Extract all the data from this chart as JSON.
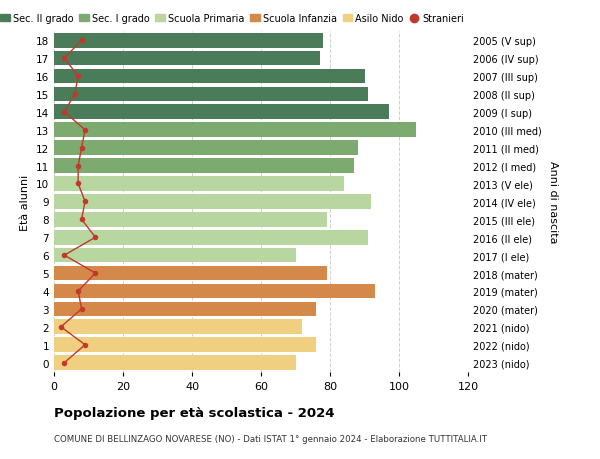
{
  "ages": [
    18,
    17,
    16,
    15,
    14,
    13,
    12,
    11,
    10,
    9,
    8,
    7,
    6,
    5,
    4,
    3,
    2,
    1,
    0
  ],
  "bar_values": [
    78,
    77,
    90,
    91,
    97,
    105,
    88,
    87,
    84,
    92,
    79,
    91,
    70,
    79,
    93,
    76,
    72,
    76,
    70
  ],
  "stranieri": [
    8,
    3,
    7,
    6,
    3,
    9,
    8,
    7,
    7,
    9,
    8,
    12,
    3,
    12,
    7,
    8,
    2,
    9,
    3
  ],
  "bar_colors": [
    "#4a7c59",
    "#4a7c59",
    "#4a7c59",
    "#4a7c59",
    "#4a7c59",
    "#7daa6f",
    "#7daa6f",
    "#7daa6f",
    "#b8d6a0",
    "#b8d6a0",
    "#b8d6a0",
    "#b8d6a0",
    "#b8d6a0",
    "#d4884a",
    "#d4884a",
    "#d4884a",
    "#f0d080",
    "#f0d080",
    "#f0d080"
  ],
  "right_labels": [
    "2005 (V sup)",
    "2006 (IV sup)",
    "2007 (III sup)",
    "2008 (II sup)",
    "2009 (I sup)",
    "2010 (III med)",
    "2011 (II med)",
    "2012 (I med)",
    "2013 (V ele)",
    "2014 (IV ele)",
    "2015 (III ele)",
    "2016 (II ele)",
    "2017 (I ele)",
    "2018 (mater)",
    "2019 (mater)",
    "2020 (mater)",
    "2021 (nido)",
    "2022 (nido)",
    "2023 (nido)"
  ],
  "legend_labels": [
    "Sec. II grado",
    "Sec. I grado",
    "Scuola Primaria",
    "Scuola Infanzia",
    "Asilo Nido",
    "Stranieri"
  ],
  "legend_colors": [
    "#4a7c59",
    "#7daa6f",
    "#b8d6a0",
    "#d4884a",
    "#f0d080",
    "#c0392b"
  ],
  "ylabel": "Età alunni",
  "right_ylabel": "Anni di nascita",
  "title": "Popolazione per età scolastica - 2024",
  "subtitle": "COMUNE DI BELLINZAGO NOVARESE (NO) - Dati ISTAT 1° gennaio 2024 - Elaborazione TUTTITALIA.IT",
  "xlim": [
    0,
    120
  ],
  "xticks": [
    0,
    20,
    40,
    60,
    80,
    100,
    120
  ],
  "background_color": "#ffffff",
  "grid_color": "#d0d0d0",
  "stranieri_color": "#c0392b"
}
